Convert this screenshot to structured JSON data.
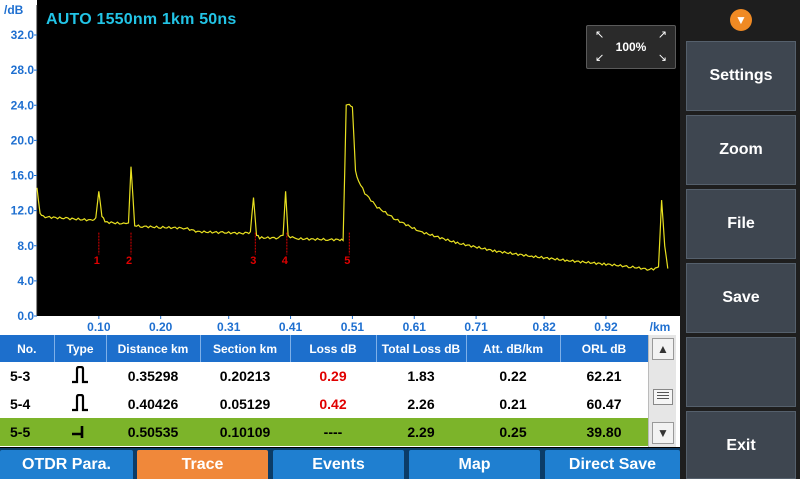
{
  "header": {
    "trace_title": "AUTO 1550nm 1km 50ns",
    "zoom_label": "100%"
  },
  "colors": {
    "trace": "#e8e020",
    "axis_text": "#1e6fd0",
    "title": "#22c4e6",
    "event_marker": "#e00000",
    "active_tab": "#f0883a",
    "tab": "#1f7fd0",
    "selected_row": "#7cb42a",
    "menu_button": "#3e4650"
  },
  "chart_data": {
    "type": "line",
    "ylabel": "/dB",
    "xlabel": "/km",
    "ylim": [
      0,
      32
    ],
    "xlim": [
      0,
      1.03
    ],
    "y_ticks": [
      "0.0",
      "4.0",
      "8.0",
      "12.0",
      "16.0",
      "20.0",
      "24.0",
      "28.0",
      "32.0"
    ],
    "x_ticks": [
      "0.10",
      "0.20",
      "0.31",
      "0.41",
      "0.51",
      "0.61",
      "0.71",
      "0.82",
      "0.92"
    ],
    "series": [
      {
        "x": [
          0.0,
          0.005,
          0.01,
          0.05,
          0.09,
          0.095,
          0.1,
          0.105,
          0.11,
          0.14,
          0.148,
          0.152,
          0.158,
          0.17,
          0.2,
          0.24,
          0.26,
          0.3,
          0.34,
          0.345,
          0.35,
          0.355,
          0.36,
          0.39,
          0.398,
          0.402,
          0.406,
          0.42,
          0.47,
          0.49,
          0.495,
          0.5,
          0.505,
          0.51,
          0.515,
          0.52,
          0.53,
          0.55,
          0.58,
          0.62,
          0.68,
          0.74,
          0.8,
          0.86,
          0.92,
          0.96,
          0.99,
          1.0,
          1.005,
          1.01,
          1.015,
          1.02
        ],
        "y": [
          14.6,
          11.6,
          11.3,
          11.1,
          10.9,
          11.2,
          14.2,
          11.4,
          10.7,
          10.5,
          10.6,
          17.0,
          10.3,
          10.2,
          10.1,
          10.0,
          9.6,
          9.5,
          9.4,
          9.6,
          13.5,
          9.3,
          8.9,
          8.9,
          9.2,
          14.2,
          9.1,
          8.8,
          8.7,
          8.7,
          8.6,
          24.0,
          24.0,
          23.8,
          16.5,
          15.4,
          14.0,
          12.4,
          11.0,
          9.6,
          8.3,
          7.4,
          6.8,
          6.3,
          5.9,
          5.6,
          5.3,
          5.4,
          5.6,
          13.2,
          8.0,
          5.4
        ]
      }
    ],
    "events": [
      {
        "label": "1",
        "x": 0.1
      },
      {
        "label": "2",
        "x": 0.152
      },
      {
        "label": "3",
        "x": 0.353
      },
      {
        "label": "4",
        "x": 0.404
      },
      {
        "label": "5",
        "x": 0.505
      }
    ]
  },
  "table": {
    "columns": [
      "No.",
      "Type",
      "Distance  km",
      "Section  km",
      "Loss  dB",
      "Total Loss  dB",
      "Att.  dB/km",
      "ORL  dB"
    ],
    "rows": [
      {
        "no": "5-3",
        "type": "reflective-event-icon",
        "distance": "0.35298",
        "section": "0.20213",
        "loss": "0.29",
        "total_loss": "1.83",
        "att": "0.22",
        "orl": "62.21",
        "selected": false
      },
      {
        "no": "5-4",
        "type": "reflective-event-icon",
        "distance": "0.40426",
        "section": "0.05129",
        "loss": "0.42",
        "total_loss": "2.26",
        "att": "0.21",
        "orl": "60.47",
        "selected": false
      },
      {
        "no": "5-5",
        "type": "end-event-icon",
        "distance": "0.50535",
        "section": "0.10109",
        "loss": "----",
        "total_loss": "2.29",
        "att": "0.25",
        "orl": "39.80",
        "selected": true
      }
    ]
  },
  "menu": {
    "settings": "Settings",
    "zoom": "Zoom",
    "file": "File",
    "save": "Save",
    "exit": "Exit"
  },
  "tabs": [
    {
      "label": "OTDR Para.",
      "active": false
    },
    {
      "label": "Trace",
      "active": true
    },
    {
      "label": "Events",
      "active": false
    },
    {
      "label": "Map",
      "active": false
    },
    {
      "label": "Direct Save",
      "active": false
    }
  ]
}
